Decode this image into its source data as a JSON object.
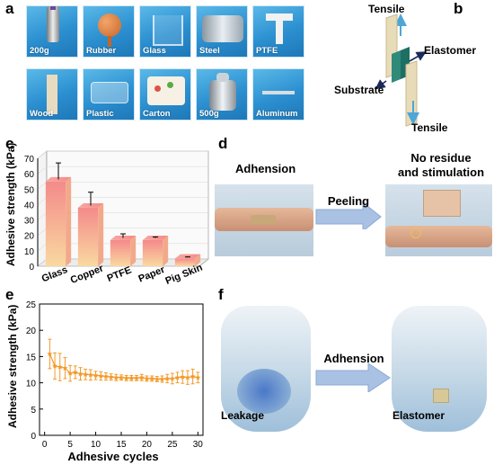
{
  "panels": {
    "a": "a",
    "b": "b",
    "c": "c",
    "d": "d",
    "e": "e",
    "f": "f"
  },
  "panel_a": {
    "tiles": [
      "200g",
      "Rubber",
      "Glass",
      "Steel",
      "PTFE",
      "Wood",
      "Plastic",
      "Carton",
      "500g",
      "Aluminum"
    ]
  },
  "panel_b": {
    "top_label": "Tensile",
    "bottom_label": "Tensile",
    "elastomer": "Elastomer",
    "substrate": "Substrate"
  },
  "panel_c": {
    "chart_data": {
      "type": "bar",
      "categories": [
        "Glass",
        "Copper",
        "PTFE",
        "Paper",
        "Pig Skin"
      ],
      "values": [
        55,
        38,
        17,
        17,
        5
      ],
      "errors": [
        12,
        10,
        4,
        2,
        1
      ],
      "ylabel": "Adhesive strength (kPa)",
      "yticks": [
        "0",
        "10",
        "20",
        "30",
        "40",
        "50",
        "60",
        "70"
      ],
      "ylim": [
        0,
        70
      ],
      "colors": {
        "bar_top": "#f48a8a",
        "bar_bottom": "#f9d9a0"
      }
    }
  },
  "panel_d": {
    "left_title": "Adhension",
    "arrow_label": "Peeling",
    "right_title_1": "No residue",
    "right_title_2": "and stimulation"
  },
  "panel_e": {
    "chart_data": {
      "type": "line",
      "xlabel": "Adhesive cycles",
      "ylabel": "Adhesive strength (kPa)",
      "xlim": [
        -1,
        31
      ],
      "ylim": [
        0,
        25
      ],
      "xticks": [
        "0",
        "5",
        "10",
        "15",
        "20",
        "25",
        "30"
      ],
      "yticks": [
        "0",
        "5",
        "10",
        "15",
        "20",
        "25"
      ],
      "color": "#f39a2c",
      "x": [
        1,
        2,
        3,
        4,
        5,
        6,
        7,
        8,
        9,
        10,
        11,
        12,
        13,
        14,
        15,
        16,
        17,
        18,
        19,
        20,
        21,
        22,
        23,
        24,
        25,
        26,
        27,
        28,
        29,
        30
      ],
      "values": [
        15.5,
        13.2,
        13.0,
        12.8,
        11.8,
        12.0,
        11.7,
        11.6,
        11.5,
        11.4,
        11.3,
        11.2,
        11.1,
        11.0,
        11.0,
        10.9,
        10.9,
        10.9,
        11.0,
        10.8,
        10.8,
        10.7,
        10.7,
        10.8,
        10.8,
        11.0,
        11.1,
        11.0,
        11.2,
        11.0
      ],
      "errors": [
        2.8,
        2.5,
        2.6,
        2.0,
        1.5,
        1.2,
        1.2,
        1.0,
        1.0,
        0.8,
        0.8,
        0.7,
        0.6,
        0.6,
        0.5,
        0.5,
        0.5,
        0.5,
        0.6,
        0.5,
        0.5,
        0.5,
        0.6,
        0.8,
        1.0,
        1.0,
        1.2,
        1.3,
        1.4,
        1.0
      ]
    }
  },
  "panel_f": {
    "arrow_label": "Adhension",
    "left_label": "Leakage",
    "right_label": "Elastomer"
  }
}
